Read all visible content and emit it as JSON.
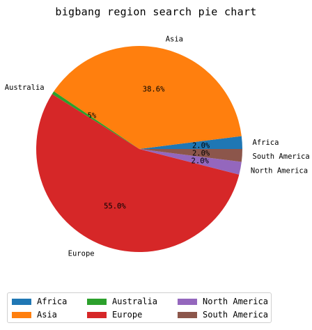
{
  "chart_data": {
    "type": "pie",
    "title": "bigbang region search pie chart",
    "slices": [
      {
        "label": "Africa",
        "value": 2.0,
        "pct_label": "2.0%",
        "color": "#1f77b4"
      },
      {
        "label": "Asia",
        "value": 38.6,
        "pct_label": "38.6%",
        "color": "#ff7f0e"
      },
      {
        "label": "Australia",
        "value": 0.5,
        "pct_label": "0.5%",
        "color": "#2ca02c"
      },
      {
        "label": "Europe",
        "value": 55.0,
        "pct_label": "55.0%",
        "color": "#d62728"
      },
      {
        "label": "North America",
        "value": 2.0,
        "pct_label": "2.0%",
        "color": "#9467bd"
      },
      {
        "label": "South America",
        "value": 2.0,
        "pct_label": "2.0%",
        "color": "#8c564b"
      }
    ],
    "legend": {
      "placement": "bottom",
      "entries": [
        "Africa",
        "Asia",
        "Australia",
        "Europe",
        "North America",
        "South America"
      ]
    }
  }
}
